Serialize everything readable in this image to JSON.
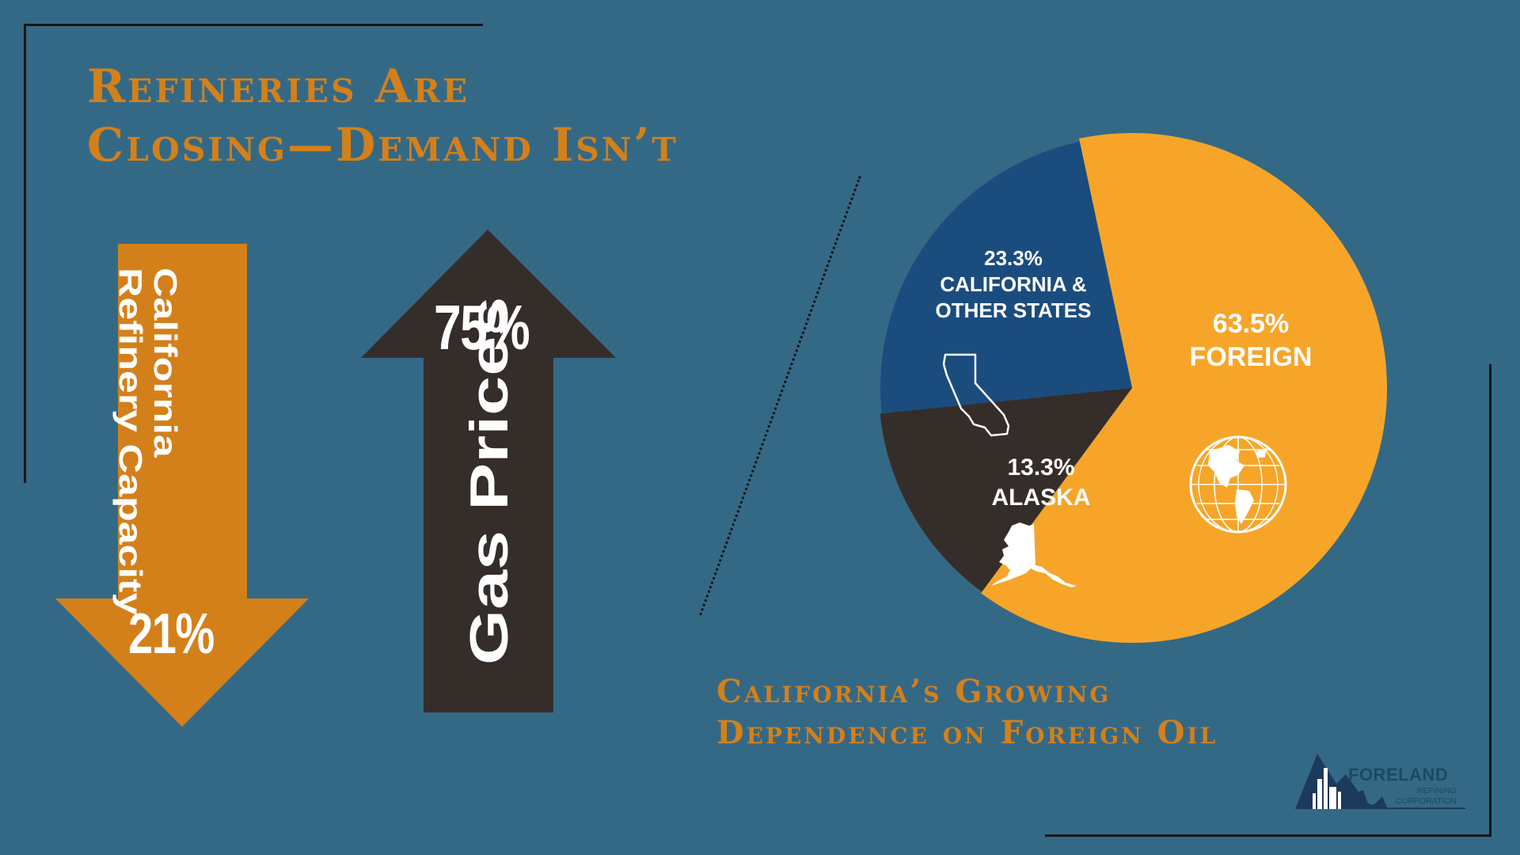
{
  "title": {
    "line1": "Refineries Are",
    "line2": "Closing—Demand Isn’t"
  },
  "arrows": {
    "down": {
      "percent": "21%",
      "label_line1": "California",
      "label_line2": "Refinery Capacity",
      "color": "#d4801a"
    },
    "up": {
      "percent": "75%",
      "label": "Gas Prices",
      "color": "#352d2a"
    }
  },
  "chart_data": {
    "type": "pie",
    "title_line1": "California’s Growing",
    "title_line2": "Dependence on Foreign Oil",
    "slices": [
      {
        "label": "FOREIGN",
        "value": 63.5,
        "display": "63.5%",
        "color": "#f6a529",
        "icon": "globe-icon"
      },
      {
        "label": "ALASKA",
        "value": 13.3,
        "display": "13.3%",
        "color": "#352d2a",
        "icon": "alaska-map-icon"
      },
      {
        "label_line1": "CALIFORNIA &",
        "label_line2": "OTHER STATES",
        "value": 23.3,
        "display": "23.3%",
        "color": "#1b4c7e",
        "icon": "california-map-icon"
      }
    ]
  },
  "logo": {
    "name": "FORELAND",
    "sub1": "REFINING",
    "sub2": "CORPORATION"
  },
  "colors": {
    "background": "#346986",
    "accent": "#d4801a"
  }
}
